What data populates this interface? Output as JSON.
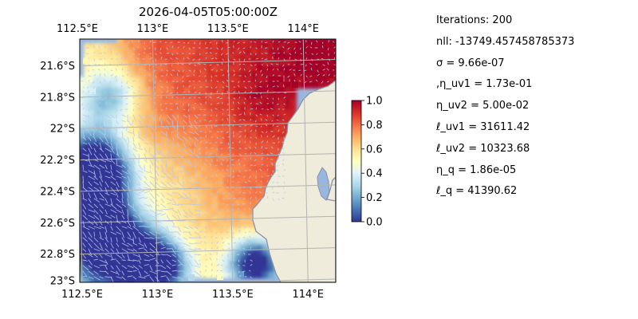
{
  "chart_data": {
    "type": "heatmap",
    "title": "2026-04-05T05:00:00Z",
    "x_ticks": [
      "112.5°E",
      "113°E",
      "113.5°E",
      "114°E"
    ],
    "y_ticks": [
      "21.6°S",
      "21.8°S",
      "22°S",
      "22.2°S",
      "22.4°S",
      "22.6°S",
      "22.8°S",
      "23°S"
    ],
    "xlim": [
      112.5,
      114.2
    ],
    "ylim": [
      -23.0,
      -21.45
    ],
    "colorbar": {
      "min": 0.0,
      "max": 1.0,
      "ticks": [
        "0.0",
        "0.2",
        "0.4",
        "0.6",
        "0.8",
        "1.0"
      ],
      "colormap": [
        "#313695",
        "#4575b4",
        "#74add1",
        "#abd9e9",
        "#e0f3f8",
        "#ffffbf",
        "#fee090",
        "#fdae61",
        "#f46d43",
        "#d73027",
        "#a50026"
      ]
    },
    "colors": {
      "ocean": "#98b7e0",
      "land": "#efecdc",
      "coast": "#8a8fa8",
      "grid": "#b3b3b3"
    }
  },
  "params": [
    "Iterations: 200",
    "nll: -13749.457458785373",
    "σ = 9.66e-07",
    ",η_uv1 = 1.73e-01",
    "η_uv2 = 5.00e-02",
    "ℓ_uv1 = 31611.42",
    "ℓ_uv2 = 10323.68",
    "η_q = 1.86e-05",
    "ℓ_q = 41390.62"
  ]
}
